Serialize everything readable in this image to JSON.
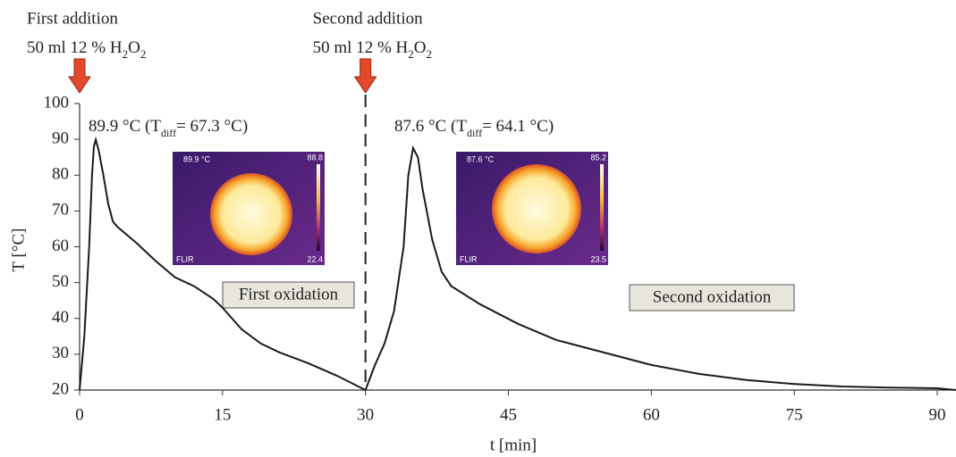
{
  "chart_data": {
    "type": "line",
    "x_label": "t [min]",
    "y_label": "T [°C]",
    "xlim": [
      0,
      92
    ],
    "ylim": [
      20,
      100
    ],
    "xticks": [
      0,
      15,
      30,
      45,
      60,
      75,
      90
    ],
    "yticks": [
      20,
      30,
      40,
      50,
      60,
      70,
      80,
      90,
      100
    ],
    "vline_x": 30,
    "series": [
      {
        "color": "#1a1a1a",
        "x": [
          0,
          0.5,
          1,
          1.3,
          1.5,
          1.7,
          2,
          2.5,
          3,
          3.5,
          4,
          6,
          8,
          10,
          12,
          14,
          15,
          17,
          19,
          21,
          24,
          27,
          30,
          31,
          32,
          33,
          34,
          34.5,
          35,
          35.5,
          36,
          37,
          38,
          39,
          42,
          46,
          50,
          55,
          60,
          65,
          70,
          75,
          80,
          85,
          90,
          92
        ],
        "values": [
          20,
          35,
          60,
          80,
          88,
          89.9,
          87,
          80,
          72,
          67,
          65.5,
          61,
          56,
          51.5,
          49,
          45.5,
          43,
          37,
          33,
          30.5,
          27.5,
          24,
          20,
          27,
          33,
          42,
          60,
          80,
          87.6,
          85,
          76,
          62,
          53,
          49,
          44,
          38.5,
          34,
          30.5,
          27,
          24.5,
          22.8,
          21.7,
          21,
          20.7,
          20.5,
          20
        ]
      }
    ],
    "additions": [
      {
        "title": "First addition",
        "dose": [
          "50 ml 12 % H",
          "2",
          "O",
          "2"
        ],
        "x": 0
      },
      {
        "title": "Second addition",
        "dose": [
          "50 ml 12 % H",
          "2",
          "O",
          "2"
        ],
        "x": 30
      }
    ],
    "peak_labels": [
      [
        "89.9 °C (T",
        "diff",
        "= 67.3 °C)"
      ],
      [
        "87.6 °C (T",
        "diff",
        "= 64.1 °C)"
      ]
    ],
    "phase_labels": [
      "First oxidation",
      "Second oxidation"
    ],
    "thermal_images": [
      {
        "readout": "89.9 °C",
        "max": "88.8",
        "min": "22.4",
        "brand": "FLIR"
      },
      {
        "readout": "87.6 °C",
        "max": "85.2",
        "min": "23.5",
        "brand": "FLIR"
      }
    ]
  }
}
